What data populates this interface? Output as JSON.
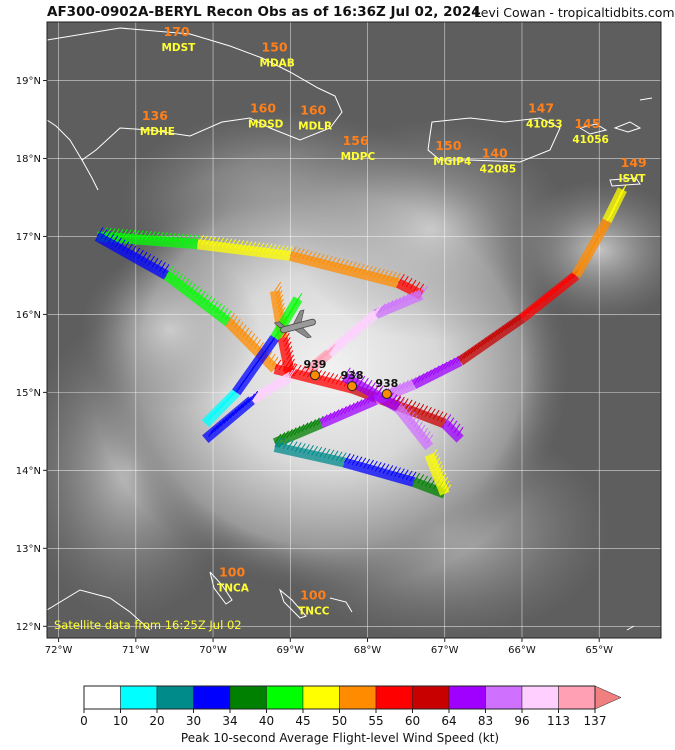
{
  "header": {
    "title": "AF300-0902A-BERYL Recon Obs as of 16:36Z Jul 02, 2024",
    "credit": "Levi Cowan - tropicaltidbits.com"
  },
  "map": {
    "lon_range": [
      -72.15,
      -64.2
    ],
    "lat_range": [
      11.85,
      19.75
    ],
    "lon_ticks": [
      "72°W",
      "71°W",
      "70°W",
      "69°W",
      "68°W",
      "67°W",
      "66°W",
      "65°W"
    ],
    "lat_ticks": [
      "12°N",
      "13°N",
      "14°N",
      "15°N",
      "16°N",
      "17°N",
      "18°N",
      "19°N"
    ],
    "satellite_note": "Satellite data from 16:25Z Jul 02",
    "stations": [
      {
        "name": "MDST",
        "value": "170",
        "lon": -70.72,
        "lat": 19.43
      },
      {
        "name": "MDAB",
        "value": "150",
        "lon": -69.45,
        "lat": 19.23
      },
      {
        "name": "MDHE",
        "value": "136",
        "lon": -71.0,
        "lat": 18.35
      },
      {
        "name": "MDSD",
        "value": "160",
        "lon": -69.6,
        "lat": 18.45
      },
      {
        "name": "MDLR",
        "value": "160",
        "lon": -68.95,
        "lat": 18.42
      },
      {
        "name": "MDPC",
        "value": "156",
        "lon": -68.4,
        "lat": 18.03
      },
      {
        "name": "MGIP4",
        "value": "150",
        "lon": -67.2,
        "lat": 17.97
      },
      {
        "name": "42085",
        "value": "140",
        "lon": -66.6,
        "lat": 17.87
      },
      {
        "name": "41053",
        "value": "147",
        "lon": -66.0,
        "lat": 18.45
      },
      {
        "name": "41056",
        "value": "145",
        "lon": -65.4,
        "lat": 18.25
      },
      {
        "name": "ISVT",
        "value": "149",
        "lon": -64.8,
        "lat": 17.75
      },
      {
        "name": "TNCA",
        "value": "100",
        "lon": -70.0,
        "lat": 12.5
      },
      {
        "name": "TNCC",
        "value": "100",
        "lon": -68.95,
        "lat": 12.2
      }
    ],
    "pressures": [
      {
        "value": "939",
        "lon": -68.68,
        "lat": 15.22
      },
      {
        "value": "938",
        "lon": -68.2,
        "lat": 15.08
      },
      {
        "value": "938",
        "lon": -67.75,
        "lat": 14.98
      }
    ]
  },
  "colorbar": {
    "ticks": [
      "0",
      "10",
      "20",
      "30",
      "34",
      "40",
      "45",
      "50",
      "55",
      "60",
      "64",
      "83",
      "96",
      "113",
      "137"
    ],
    "colors": [
      "#ffffff",
      "#00ffff",
      "#008b8b",
      "#0000ff",
      "#008000",
      "#00ff00",
      "#ffff00",
      "#ff8c00",
      "#ff0000",
      "#c80000",
      "#a000ff",
      "#d070ff",
      "#ffd0ff",
      "#ffa0b4"
    ],
    "extend_color": "#f08080",
    "label": "Peak 10-second Average Flight-level Wind Speed (kt)"
  }
}
